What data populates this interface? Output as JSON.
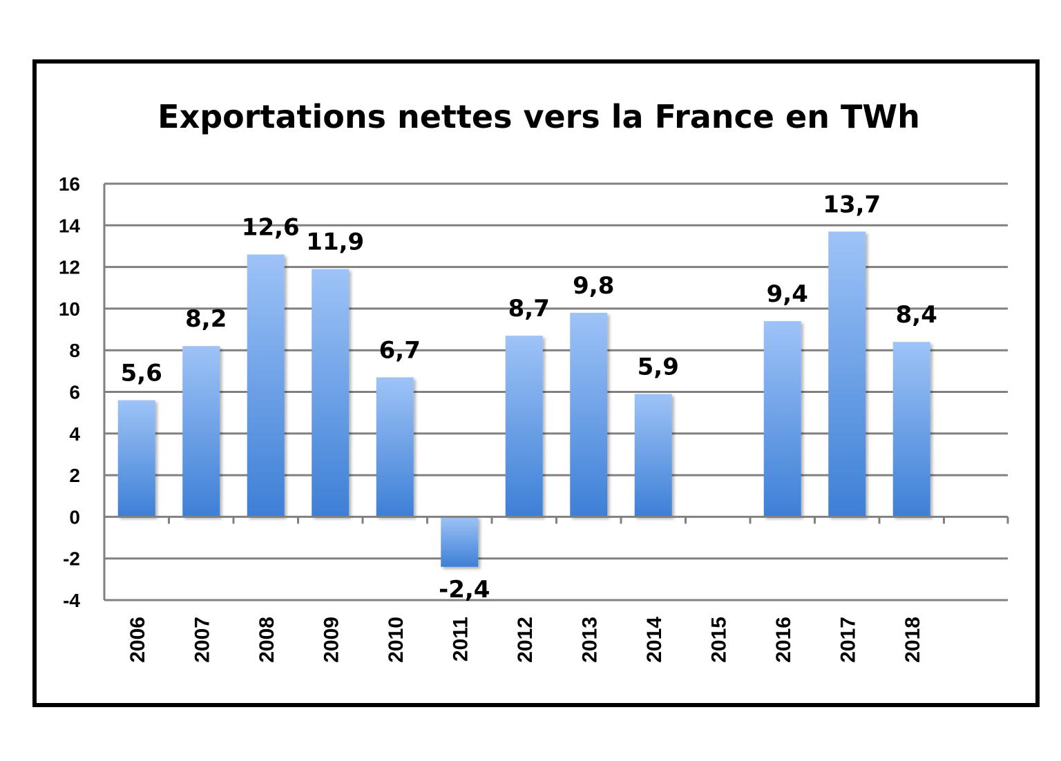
{
  "chart_data": {
    "type": "bar",
    "title": "Exportations nettes vers la France en TWh",
    "xlabel": "",
    "ylabel": "",
    "categories": [
      "2006",
      "2007",
      "2008",
      "2009",
      "2010",
      "2011",
      "2012",
      "2013",
      "2014",
      "2015",
      "2016",
      "2017",
      "2018"
    ],
    "values": [
      5.6,
      8.2,
      12.6,
      11.9,
      6.7,
      -2.4,
      8.7,
      9.8,
      5.9,
      null,
      9.4,
      13.7,
      8.4
    ],
    "data_labels": [
      "5,6",
      "8,2",
      "12,6",
      "11,9",
      "6,7",
      "-2,4",
      "8,7",
      "9,8",
      "5,9",
      "",
      "9,4",
      "13,7",
      "8,4"
    ],
    "yticks": [
      16,
      14,
      12,
      10,
      8,
      6,
      4,
      2,
      0,
      -2,
      -4
    ],
    "ylim": [
      -4,
      16
    ],
    "grid": true,
    "legend": "none",
    "colors": {
      "bar_top": "#9ec3f7",
      "bar_bottom": "#3d7fd6",
      "grid": "#808080"
    }
  }
}
